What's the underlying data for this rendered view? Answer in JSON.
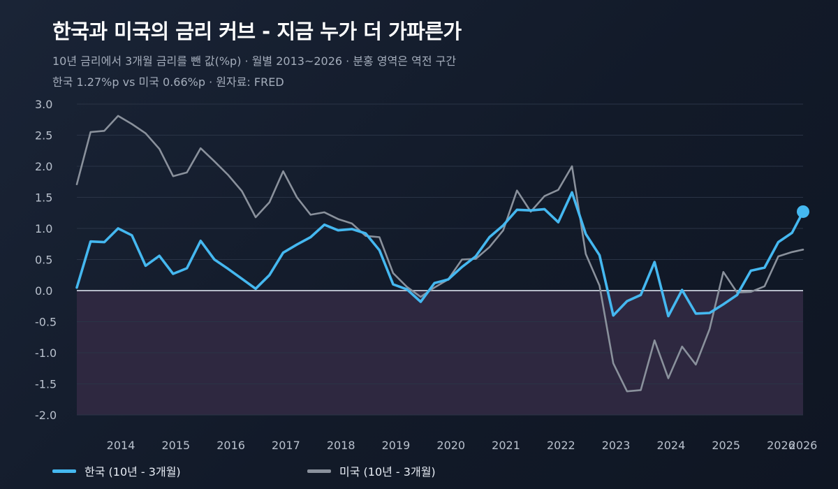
{
  "header": {
    "title": "한국과 미국의 금리 커브 - 지금 누가 더 가파른가",
    "subtitle1": "10년 금리에서 3개월 금리를 뺀 값(%p)  ·  월별 2013~2026  ·  분홍 영역은 역전 구간",
    "subtitle2": "한국 1.27%p  vs  미국 0.66%p  ·  원자료: FRED"
  },
  "colors": {
    "korea": "#45b8f0",
    "us": "#8a919c",
    "inversion_band": "#2e2840",
    "zero_line": "#b5bcc8",
    "grid": "#2a3446",
    "tick_text": "#b9c1cd"
  },
  "chart_data": {
    "type": "line",
    "title": "한국과 미국의 금리 커브 - 지금 누가 더 가파른가",
    "xlabel": "",
    "ylabel": "",
    "ylim": [
      -2.0,
      3.0
    ],
    "y_ticks": [
      "3.0",
      "2.5",
      "2.0",
      "1.5",
      "1.0",
      "0.5",
      "0.0",
      "-0.5",
      "-1.0",
      "-1.5",
      "-2.0"
    ],
    "x_tick_labels": [
      "2014",
      "2015",
      "2016",
      "2017",
      "2018",
      "2019",
      "2020",
      "2021",
      "2022",
      "2023",
      "2024",
      "2025",
      "2026",
      "2026"
    ],
    "x_tick_years": [
      2014.0,
      2015.0,
      2016.0,
      2017.0,
      2018.0,
      2019.0,
      2020.0,
      2021.0,
      2022.0,
      2023.0,
      2024.0,
      2025.0,
      2026.0,
      2026.4
    ],
    "x_range": [
      2013.2,
      2026.4
    ],
    "grid": true,
    "legend_position": "bottom",
    "inversion_region": "below 0",
    "series": [
      {
        "name": "한국 (10년 - 3개월)",
        "color": "#45b8f0",
        "end_marker": true,
        "x": [
          2013.2,
          2013.45,
          2013.7,
          2013.95,
          2014.2,
          2014.45,
          2014.7,
          2014.95,
          2015.2,
          2015.45,
          2015.7,
          2015.95,
          2016.2,
          2016.45,
          2016.7,
          2016.95,
          2017.2,
          2017.45,
          2017.7,
          2017.95,
          2018.2,
          2018.45,
          2018.7,
          2018.95,
          2019.2,
          2019.45,
          2019.7,
          2019.95,
          2020.2,
          2020.45,
          2020.7,
          2020.95,
          2021.2,
          2021.45,
          2021.7,
          2021.95,
          2022.2,
          2022.45,
          2022.7,
          2022.95,
          2023.2,
          2023.45,
          2023.7,
          2023.95,
          2024.2,
          2024.45,
          2024.7,
          2024.95,
          2025.2,
          2025.45,
          2025.7,
          2025.95,
          2026.2,
          2026.4
        ],
        "y": [
          0.05,
          0.79,
          0.78,
          1.0,
          0.89,
          0.4,
          0.56,
          0.27,
          0.36,
          0.8,
          0.5,
          0.35,
          0.19,
          0.03,
          0.25,
          0.61,
          0.74,
          0.86,
          1.06,
          0.97,
          0.99,
          0.92,
          0.65,
          0.1,
          0.02,
          -0.18,
          0.12,
          0.18,
          0.38,
          0.55,
          0.86,
          1.05,
          1.3,
          1.29,
          1.31,
          1.1,
          1.58,
          0.91,
          0.57,
          -0.4,
          -0.17,
          -0.07,
          0.46,
          -0.41,
          0.01,
          -0.37,
          -0.36,
          -0.22,
          -0.07,
          0.32,
          0.37,
          0.78,
          0.93,
          1.27
        ]
      },
      {
        "name": "미국 (10년 - 3개월)",
        "color": "#8a919c",
        "end_marker": false,
        "x": [
          2013.2,
          2013.45,
          2013.7,
          2013.95,
          2014.2,
          2014.45,
          2014.7,
          2014.95,
          2015.2,
          2015.45,
          2015.7,
          2015.95,
          2016.2,
          2016.45,
          2016.7,
          2016.95,
          2017.2,
          2017.45,
          2017.7,
          2017.95,
          2018.2,
          2018.45,
          2018.7,
          2018.95,
          2019.2,
          2019.45,
          2019.7,
          2019.95,
          2020.2,
          2020.45,
          2020.7,
          2020.95,
          2021.2,
          2021.45,
          2021.7,
          2021.95,
          2022.2,
          2022.45,
          2022.7,
          2022.95,
          2023.2,
          2023.45,
          2023.7,
          2023.95,
          2024.2,
          2024.45,
          2024.7,
          2024.95,
          2025.2,
          2025.45,
          2025.7,
          2025.95,
          2026.2,
          2026.4
        ],
        "y": [
          1.71,
          2.55,
          2.57,
          2.81,
          2.68,
          2.53,
          2.28,
          1.84,
          1.9,
          2.29,
          2.08,
          1.86,
          1.6,
          1.18,
          1.42,
          1.92,
          1.5,
          1.22,
          1.26,
          1.15,
          1.08,
          0.88,
          0.86,
          0.28,
          0.06,
          -0.1,
          0.05,
          0.18,
          0.5,
          0.51,
          0.7,
          0.97,
          1.61,
          1.27,
          1.52,
          1.62,
          2.0,
          0.59,
          0.08,
          -1.17,
          -1.62,
          -1.6,
          -0.8,
          -1.41,
          -0.9,
          -1.19,
          -0.62,
          0.3,
          -0.03,
          -0.02,
          0.07,
          0.55,
          0.62,
          0.66
        ]
      }
    ]
  },
  "legend": {
    "korea_label": "한국 (10년 - 3개월)",
    "us_label": "미국 (10년 - 3개월)"
  }
}
